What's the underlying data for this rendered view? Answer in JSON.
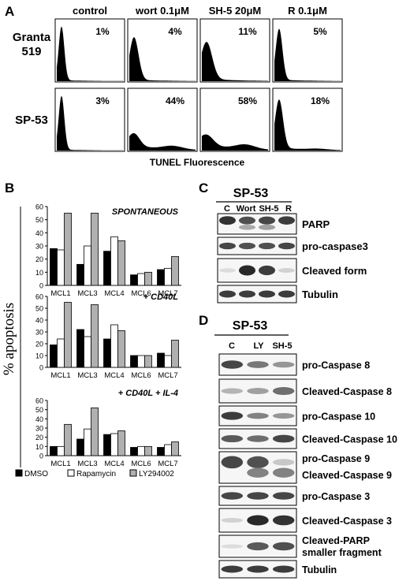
{
  "panel_a": {
    "letter": "A",
    "columns": [
      "control",
      "wort 0.1μM",
      "SH-5 20μM",
      "R 0.1μM"
    ],
    "rows": [
      {
        "label_line1": "Granta",
        "label_line2": "519",
        "values": [
          "1%",
          "4%",
          "11%",
          "5%"
        ]
      },
      {
        "label_line1": "SP-53",
        "label_line2": "",
        "values": [
          "3%",
          "44%",
          "58%",
          "18%"
        ]
      }
    ],
    "xlabel": "TUNEL Fluorescence"
  },
  "panel_b": {
    "letter": "B",
    "ylabel": "% apoptosis",
    "legend": [
      "DMSO",
      "Rapamycin",
      "LY294002"
    ],
    "colors": {
      "dmso": "#000000",
      "rapamycin": "#ffffff",
      "ly294002": "#b0b0b0"
    }
  },
  "chart_data": [
    {
      "type": "bar",
      "title": "SPONTANEOUS",
      "categories": [
        "MCL1",
        "MCL3",
        "MCL4",
        "MCL6",
        "MCL7"
      ],
      "ylim": [
        0,
        60
      ],
      "yticks": [
        0,
        10,
        20,
        30,
        40,
        50,
        60
      ],
      "series": [
        {
          "name": "DMSO",
          "values": [
            28,
            16,
            26,
            8,
            12
          ]
        },
        {
          "name": "Rapamycin",
          "values": [
            27,
            30,
            37,
            9,
            13
          ]
        },
        {
          "name": "LY294002",
          "values": [
            55,
            55,
            34,
            10,
            22
          ]
        }
      ]
    },
    {
      "type": "bar",
      "title": "+ CD40L",
      "categories": [
        "MCL1",
        "MCL3",
        "MCL4",
        "MCL6",
        "MCL7"
      ],
      "ylim": [
        0,
        60
      ],
      "yticks": [
        0,
        10,
        20,
        30,
        40,
        50,
        60
      ],
      "series": [
        {
          "name": "DMSO",
          "values": [
            19,
            32,
            24,
            10,
            12
          ]
        },
        {
          "name": "Rapamycin",
          "values": [
            24,
            26,
            36,
            10,
            10
          ]
        },
        {
          "name": "LY294002",
          "values": [
            55,
            53,
            31,
            10,
            23
          ]
        }
      ]
    },
    {
      "type": "bar",
      "title": "+ CD40L + IL-4",
      "categories": [
        "MCL1",
        "MCL3",
        "MCL4",
        "MCL6",
        "MCL7"
      ],
      "ylim": [
        0,
        60
      ],
      "yticks": [
        0,
        10,
        20,
        30,
        40,
        50,
        60
      ],
      "series": [
        {
          "name": "DMSO",
          "values": [
            10,
            18,
            23,
            9,
            9
          ]
        },
        {
          "name": "Rapamycin",
          "values": [
            10,
            29,
            24,
            10,
            12
          ]
        },
        {
          "name": "LY294002",
          "values": [
            34,
            52,
            27,
            10,
            15
          ]
        }
      ]
    }
  ],
  "panel_c": {
    "letter": "C",
    "cell_line": "SP-53",
    "lanes": [
      "C",
      "Wort",
      "SH-5",
      "R"
    ],
    "blots": [
      "PARP",
      "pro-caspase3",
      "Cleaved form",
      "Tubulin"
    ]
  },
  "panel_d": {
    "letter": "D",
    "cell_line": "SP-53",
    "lanes": [
      "C",
      "LY",
      "SH-5"
    ],
    "blots": [
      "pro-Caspase 8",
      "Cleaved-Caspase 8",
      "pro-Caspase 10",
      "Cleaved-Caspase 10",
      "pro-Caspase 9",
      "Cleaved-Caspase 9",
      "pro-Caspase 3",
      "Cleaved-Caspase 3",
      "Cleaved-PARP",
      "smaller fragment",
      "Tubulin"
    ]
  }
}
